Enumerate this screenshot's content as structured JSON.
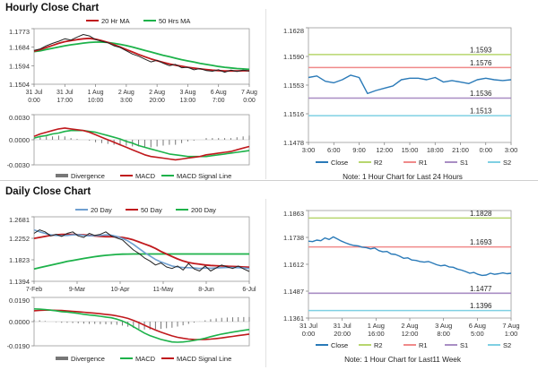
{
  "titles": {
    "hourly": "Hourly Close Chart",
    "daily": "Daily Close Chart"
  },
  "colors": {
    "close": "#2a7ab8",
    "ma_short": "#c0191d",
    "ma_long": "#1db24a",
    "blue_ma": "#6f9fd0",
    "macd_green": "#1db24a",
    "signal_red": "#c0191d",
    "divergence": "#777777",
    "r2": "#b7d66e",
    "r1": "#f08a8a",
    "s1": "#a98ec4",
    "s2": "#7fd0e3"
  },
  "hourly_note": "Note: 1 Hour Chart for Last 24 Hours",
  "daily_note": "Note: 1 Hour Chart for Last11 Week",
  "chart_data": [
    {
      "id": "hourly_price",
      "type": "line",
      "legend": [
        "20 Hr MA",
        "50 Hrs MA"
      ],
      "yticks": [
        "1.1773",
        "1.1684",
        "1.1594",
        "1.1504"
      ],
      "ylim": [
        1.1504,
        1.1773
      ],
      "xticks": [
        "31 Jul\n0:00",
        "31 Jul\n17:00",
        "1 Aug\n10:00",
        "2 Aug\n3:00",
        "2 Aug\n20:00",
        "3 Aug\n13:00",
        "6 Aug\n7:00",
        "7 Aug\n0:00"
      ],
      "series": [
        {
          "name": "Close",
          "values": [
            1.1668,
            1.1675,
            1.169,
            1.1702,
            1.1712,
            1.1724,
            1.1718,
            1.1732,
            1.1745,
            1.1738,
            1.172,
            1.1712,
            1.1705,
            1.169,
            1.1682,
            1.1666,
            1.165,
            1.164,
            1.1626,
            1.1612,
            1.162,
            1.1606,
            1.1594,
            1.16,
            1.1584,
            1.1586,
            1.1574,
            1.158,
            1.157,
            1.1567,
            1.1574,
            1.1562,
            1.1572,
            1.1566,
            1.1572,
            1.1568
          ]
        },
        {
          "name": "20 Hr MA",
          "values": [
            1.1664,
            1.1672,
            1.1682,
            1.1692,
            1.1702,
            1.171,
            1.1715,
            1.172,
            1.1724,
            1.1726,
            1.1722,
            1.1715,
            1.1706,
            1.1695,
            1.1684,
            1.1672,
            1.166,
            1.1648,
            1.1637,
            1.1627,
            1.1618,
            1.161,
            1.1602,
            1.1596,
            1.1591,
            1.1586,
            1.1582,
            1.1578,
            1.1575,
            1.1572,
            1.157,
            1.1568,
            1.1568,
            1.1568,
            1.1569,
            1.1569
          ]
        },
        {
          "name": "50 Hrs MA",
          "values": [
            1.1662,
            1.1666,
            1.1672,
            1.1678,
            1.1684,
            1.169,
            1.1695,
            1.1699,
            1.1703,
            1.1706,
            1.1708,
            1.1708,
            1.1706,
            1.1702,
            1.1697,
            1.1691,
            1.1684,
            1.1676,
            1.1668,
            1.166,
            1.1652,
            1.1644,
            1.1637,
            1.163,
            1.1623,
            1.1617,
            1.1611,
            1.1605,
            1.16,
            1.1595,
            1.159,
            1.1586,
            1.1583,
            1.158,
            1.1578,
            1.1576
          ]
        }
      ]
    },
    {
      "id": "hourly_macd",
      "type": "line",
      "legend": [
        "Divergence",
        "MACD",
        "MACD Signal Line"
      ],
      "yticks": [
        "0.0030",
        "0.0000",
        "-0.0030"
      ],
      "ylim": [
        -0.003,
        0.003
      ],
      "series": [
        {
          "name": "MACD",
          "values": [
            0.0004,
            0.0007,
            0.0009,
            0.0011,
            0.0013,
            0.0014,
            0.0013,
            0.0012,
            0.0011,
            0.0009,
            0.0006,
            0.0003,
            -0.0,
            -0.0003,
            -0.0006,
            -0.0009,
            -0.0012,
            -0.0015,
            -0.0018,
            -0.002,
            -0.0021,
            -0.0022,
            -0.0023,
            -0.0024,
            -0.0023,
            -0.0022,
            -0.0021,
            -0.002,
            -0.0018,
            -0.0017,
            -0.0016,
            -0.0015,
            -0.0014,
            -0.0012,
            -0.001,
            -0.0008
          ]
        },
        {
          "name": "MACD Signal Line",
          "values": [
            0.0002,
            0.0004,
            0.0005,
            0.0007,
            0.0008,
            0.001,
            0.0011,
            0.0011,
            0.0011,
            0.001,
            0.0009,
            0.0007,
            0.0005,
            0.0003,
            0.0001,
            -0.0002,
            -0.0004,
            -0.0007,
            -0.0009,
            -0.0011,
            -0.0013,
            -0.0015,
            -0.0017,
            -0.0018,
            -0.0019,
            -0.002,
            -0.002,
            -0.002,
            -0.002,
            -0.0019,
            -0.0018,
            -0.0017,
            -0.0016,
            -0.0015,
            -0.0014,
            -0.0013
          ]
        },
        {
          "name": "Divergence",
          "values": [
            0.0002,
            0.0003,
            0.0004,
            0.0004,
            0.0005,
            0.0004,
            0.0002,
            0.0001,
            0.0,
            -0.0001,
            -0.0003,
            -0.0004,
            -0.0005,
            -0.0006,
            -0.0007,
            -0.0007,
            -0.0008,
            -0.0008,
            -0.0009,
            -0.0009,
            -0.0008,
            -0.0007,
            -0.0006,
            -0.0006,
            -0.0004,
            -0.0002,
            -0.0001,
            0.0,
            0.0002,
            0.0002,
            0.0002,
            0.0002,
            0.0002,
            0.0003,
            0.0004,
            0.0005
          ]
        }
      ]
    },
    {
      "id": "hourly_24h",
      "type": "line",
      "yticks": [
        "1.1628",
        "1.1590",
        "1.1553",
        "1.1516",
        "1.1478"
      ],
      "ylim": [
        1.1478,
        1.1628
      ],
      "xticks": [
        "3:00",
        "6:00",
        "9:00",
        "12:00",
        "15:00",
        "18:00",
        "21:00",
        "0:00",
        "3:00"
      ],
      "levels": [
        {
          "name": "R2",
          "value": 1.1593,
          "label": "1.1593"
        },
        {
          "name": "R1",
          "value": 1.1576,
          "label": "1.1576"
        },
        {
          "name": "S1",
          "value": 1.1536,
          "label": "1.1536"
        },
        {
          "name": "S2",
          "value": 1.1513,
          "label": "1.1513"
        }
      ],
      "legend": [
        "Close",
        "R2",
        "R1",
        "S1",
        "S2"
      ],
      "series": [
        {
          "name": "Close",
          "values": [
            1.1563,
            1.1565,
            1.1558,
            1.1556,
            1.156,
            1.1566,
            1.1563,
            1.1542,
            1.1546,
            1.1549,
            1.1552,
            1.156,
            1.1562,
            1.1562,
            1.156,
            1.1563,
            1.1557,
            1.1559,
            1.1557,
            1.1555,
            1.156,
            1.1562,
            1.156,
            1.1559,
            1.156
          ]
        }
      ]
    },
    {
      "id": "daily_price",
      "type": "line",
      "legend": [
        "20 Day",
        "50 Day",
        "200 Day"
      ],
      "yticks": [
        "1.2681",
        "1.2252",
        "1.1823",
        "1.1394"
      ],
      "ylim": [
        1.1394,
        1.2681
      ],
      "xticks": [
        "7-Feb",
        "9-Mar",
        "10-Apr",
        "11-May",
        "8-Jun",
        "6-Jul"
      ],
      "series": [
        {
          "name": "Close",
          "values": [
            1.235,
            1.242,
            1.238,
            1.23,
            1.233,
            1.229,
            1.235,
            1.238,
            1.23,
            1.227,
            1.235,
            1.231,
            1.233,
            1.238,
            1.23,
            1.226,
            1.222,
            1.212,
            1.202,
            1.195,
            1.186,
            1.18,
            1.172,
            1.176,
            1.168,
            1.165,
            1.17,
            1.162,
            1.175,
            1.164,
            1.16,
            1.17,
            1.16,
            1.166,
            1.172,
            1.168,
            1.165,
            1.17,
            1.164,
            1.159
          ]
        },
        {
          "name": "20 Day",
          "values": [
            1.242,
            1.238,
            1.235,
            1.232,
            1.231,
            1.2305,
            1.231,
            1.232,
            1.2325,
            1.231,
            1.23,
            1.2305,
            1.231,
            1.232,
            1.2315,
            1.229,
            1.225,
            1.22,
            1.213,
            1.205,
            1.197,
            1.19,
            1.183,
            1.178,
            1.174,
            1.17,
            1.168,
            1.167,
            1.1665,
            1.166,
            1.165,
            1.166,
            1.1655,
            1.166,
            1.1665,
            1.167,
            1.1668,
            1.1665,
            1.166,
            1.165
          ]
        },
        {
          "name": "50 Day",
          "values": [
            1.225,
            1.227,
            1.229,
            1.231,
            1.232,
            1.233,
            1.233,
            1.233,
            1.2325,
            1.232,
            1.231,
            1.23,
            1.229,
            1.2285,
            1.2285,
            1.228,
            1.227,
            1.225,
            1.222,
            1.218,
            1.214,
            1.21,
            1.205,
            1.199,
            1.194,
            1.189,
            1.184,
            1.18,
            1.177,
            1.175,
            1.1735,
            1.172,
            1.171,
            1.1705,
            1.17,
            1.1695,
            1.169,
            1.1685,
            1.168,
            1.1675
          ]
        },
        {
          "name": "200 Day",
          "values": [
            1.164,
            1.1665,
            1.169,
            1.1715,
            1.174,
            1.1765,
            1.179,
            1.181,
            1.183,
            1.185,
            1.1868,
            1.1885,
            1.19,
            1.1912,
            1.1922,
            1.193,
            1.1935,
            1.1938,
            1.1939,
            1.1939,
            1.1939,
            1.1939,
            1.1939,
            1.1939,
            1.1939,
            1.1939,
            1.1939,
            1.1939,
            1.1939,
            1.1939,
            1.1939,
            1.1939,
            1.1939,
            1.1939,
            1.1939,
            1.1939,
            1.1939,
            1.1939,
            1.1939,
            1.1939
          ]
        }
      ]
    },
    {
      "id": "daily_macd",
      "type": "line",
      "legend": [
        "Divergence",
        "MACD",
        "MACD Signal Line"
      ],
      "yticks": [
        "0.0190",
        "0.0000",
        "-0.0190"
      ],
      "ylim": [
        -0.019,
        0.019
      ],
      "series": [
        {
          "name": "MACD",
          "values": [
            0.01,
            0.0098,
            0.0095,
            0.009,
            0.0085,
            0.0078,
            0.0075,
            0.007,
            0.0065,
            0.0058,
            0.0052,
            0.0048,
            0.0042,
            0.0036,
            0.003,
            0.002,
            0.0005,
            -0.0015,
            -0.004,
            -0.0065,
            -0.009,
            -0.011,
            -0.0125,
            -0.014,
            -0.015,
            -0.016,
            -0.0162,
            -0.016,
            -0.0155,
            -0.0148,
            -0.014,
            -0.013,
            -0.0118,
            -0.0108,
            -0.0098,
            -0.009,
            -0.0082,
            -0.0075,
            -0.0068,
            -0.0062
          ]
        },
        {
          "name": "MACD Signal Line",
          "values": [
            0.0085,
            0.0088,
            0.009,
            0.009,
            0.0089,
            0.0087,
            0.0084,
            0.0081,
            0.0078,
            0.0074,
            0.007,
            0.0066,
            0.0062,
            0.0057,
            0.0052,
            0.0045,
            0.0036,
            0.0025,
            0.001,
            -0.0008,
            -0.0028,
            -0.0048,
            -0.0066,
            -0.0083,
            -0.0098,
            -0.0112,
            -0.0123,
            -0.0131,
            -0.0137,
            -0.014,
            -0.0141,
            -0.014,
            -0.0137,
            -0.0133,
            -0.0128,
            -0.0122,
            -0.0116,
            -0.011,
            -0.0104,
            -0.0098
          ]
        },
        {
          "name": "Divergence",
          "values": [
            0.0015,
            0.001,
            0.0005,
            0.0,
            -0.0004,
            -0.0009,
            -0.0009,
            -0.0011,
            -0.0013,
            -0.0016,
            -0.0018,
            -0.0018,
            -0.002,
            -0.0021,
            -0.0022,
            -0.0025,
            -0.0031,
            -0.004,
            -0.005,
            -0.0057,
            -0.0062,
            -0.0062,
            -0.0059,
            -0.0057,
            -0.0052,
            -0.0048,
            -0.0039,
            -0.0029,
            -0.0018,
            -0.0008,
            0.0001,
            0.001,
            0.0019,
            0.0025,
            0.003,
            0.0032,
            0.0034,
            0.0035,
            0.0036,
            0.0036
          ]
        }
      ]
    },
    {
      "id": "daily_week",
      "type": "line",
      "yticks": [
        "1.1863",
        "1.1738",
        "1.1612",
        "1.1487",
        "1.1361"
      ],
      "ylim": [
        1.1361,
        1.1863
      ],
      "xticks": [
        "31 Jul\n0:00",
        "31 Jul\n20:00",
        "1 Aug\n16:00",
        "2 Aug\n12:00",
        "3 Aug\n8:00",
        "6 Aug\n5:00",
        "7 Aug\n1:00"
      ],
      "levels": [
        {
          "name": "R2",
          "value": 1.1828,
          "label": "1.1828"
        },
        {
          "name": "R1",
          "value": 1.1693,
          "label": "1.1693"
        },
        {
          "name": "S1",
          "value": 1.1477,
          "label": "1.1477"
        },
        {
          "name": "S2",
          "value": 1.1396,
          "label": "1.1396"
        }
      ],
      "legend": [
        "Close",
        "R2",
        "R1",
        "S1",
        "S2"
      ],
      "series": [
        {
          "name": "Close",
          "values": [
            1.172,
            1.1718,
            1.1725,
            1.1722,
            1.1735,
            1.1728,
            1.174,
            1.173,
            1.172,
            1.1712,
            1.1705,
            1.17,
            1.1698,
            1.1692,
            1.169,
            1.1684,
            1.1688,
            1.1676,
            1.167,
            1.1672,
            1.166,
            1.1658,
            1.165,
            1.164,
            1.1642,
            1.1632,
            1.163,
            1.1625,
            1.1622,
            1.1625,
            1.1618,
            1.161,
            1.1605,
            1.1608,
            1.16,
            1.1598,
            1.159,
            1.1585,
            1.1578,
            1.157,
            1.1574,
            1.1565,
            1.156,
            1.1562,
            1.157,
            1.1565,
            1.1568,
            1.1572,
            1.1568,
            1.157
          ]
        }
      ]
    }
  ]
}
